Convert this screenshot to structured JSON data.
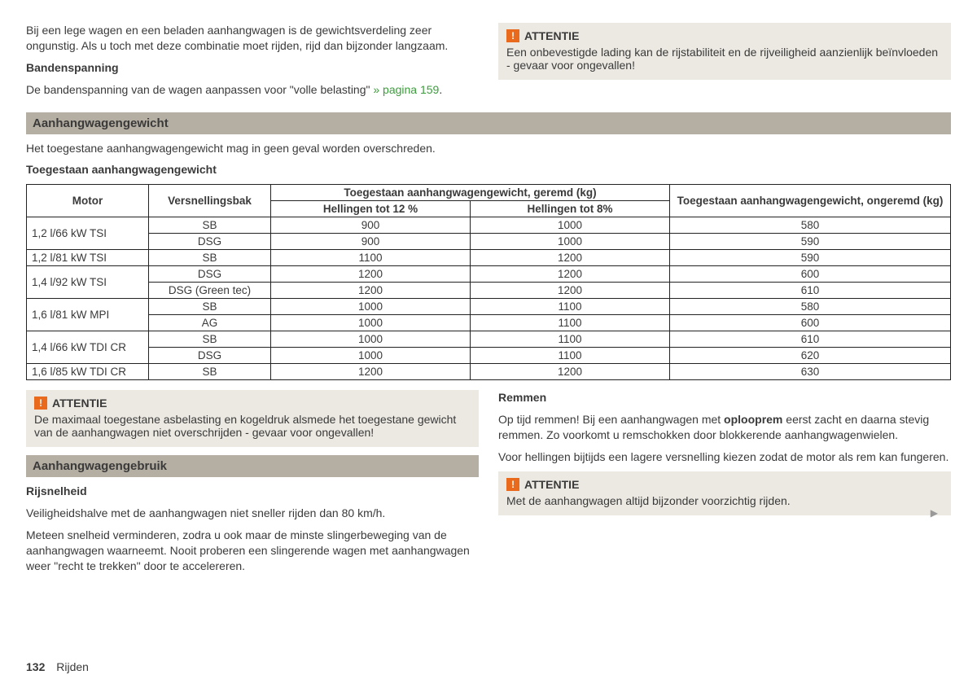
{
  "intro": {
    "p1": "Bij een lege wagen en een beladen aanhangwagen is de gewichtsverdeling zeer ongunstig. Als u toch met deze combinatie moet rijden, rijd dan bijzonder langzaam.",
    "h1": "Bandenspanning",
    "p2a": "De bandenspanning van de wagen aanpassen voor \"volle belasting\" ",
    "p2link": "» pagina 159",
    "p2b": "."
  },
  "top_attentie": {
    "title": "ATTENTIE",
    "body": "Een onbevestigde lading kan de rijstabiliteit en de rijveiligheid aanzienlijk beïnvloeden - gevaar voor ongevallen!"
  },
  "sec1": {
    "title": "Aanhangwagengewicht",
    "p1": "Het toegestane aanhangwagengewicht mag in geen geval worden overschreden.",
    "caption": "Toegestaan aanhangwagengewicht"
  },
  "table": {
    "h_motor": "Motor",
    "h_vers": "Versnellingsbak",
    "h_geremd": "Toegestaan aanhangwagengewicht, geremd (kg)",
    "h_sub12": "Hellingen tot 12 %",
    "h_sub8": "Hellingen tot 8%",
    "h_ongeremd": "Toegestaan aanhangwagengewicht, ongeremd (kg)",
    "rows": [
      {
        "motor": "1,2 l/66 kW TSI",
        "span": 2,
        "cells": [
          [
            "SB",
            "900",
            "1000",
            "580"
          ],
          [
            "DSG",
            "900",
            "1000",
            "590"
          ]
        ]
      },
      {
        "motor": "1,2 l/81 kW TSI",
        "span": 1,
        "cells": [
          [
            "SB",
            "1100",
            "1200",
            "590"
          ]
        ]
      },
      {
        "motor": "1,4 l/92 kW TSI",
        "span": 2,
        "cells": [
          [
            "DSG",
            "1200",
            "1200",
            "600"
          ],
          [
            "DSG (Green tec)",
            "1200",
            "1200",
            "610"
          ]
        ]
      },
      {
        "motor": "1,6 l/81 kW MPI",
        "span": 2,
        "cells": [
          [
            "SB",
            "1000",
            "1100",
            "580"
          ],
          [
            "AG",
            "1000",
            "1100",
            "600"
          ]
        ]
      },
      {
        "motor": "1,4 l/66 kW TDI CR",
        "span": 2,
        "cells": [
          [
            "SB",
            "1000",
            "1100",
            "610"
          ],
          [
            "DSG",
            "1000",
            "1100",
            "620"
          ]
        ]
      },
      {
        "motor": "1,6 l/85 kW TDI CR",
        "span": 1,
        "cells": [
          [
            "SB",
            "1200",
            "1200",
            "630"
          ]
        ]
      }
    ]
  },
  "att1": {
    "title": "ATTENTIE",
    "body": "De maximaal toegestane asbelasting en kogeldruk alsmede het toegestane gewicht van de aanhangwagen niet overschrijden - gevaar voor ongevallen!"
  },
  "sec2": {
    "title": "Aanhangwagengebruik"
  },
  "rijsnelheid": {
    "h": "Rijsnelheid",
    "p1": "Veiligheidshalve met de aanhangwagen niet sneller rijden dan 80 km/h.",
    "p2": "Meteen snelheid verminderen, zodra u ook maar de minste slingerbeweging van de aanhangwagen waarneemt. Nooit proberen een slingerende wagen met aanhangwagen weer \"recht te trekken\" door te accelereren."
  },
  "remmen": {
    "h": "Remmen",
    "p1a": "Op tijd remmen! Bij een aanhangwagen met ",
    "p1bold": "oplooprem",
    "p1b": " eerst zacht en daarna stevig remmen. Zo voorkomt u remschokken door blokkerende aanhangwagenwielen.",
    "p2": "Voor hellingen bijtijds een lagere versnelling kiezen zodat de motor als rem kan fungeren."
  },
  "att2": {
    "title": "ATTENTIE",
    "body": "Met de aanhangwagen altijd bijzonder voorzichtig rijden."
  },
  "footer": {
    "page": "132",
    "chapter": "Rijden"
  }
}
